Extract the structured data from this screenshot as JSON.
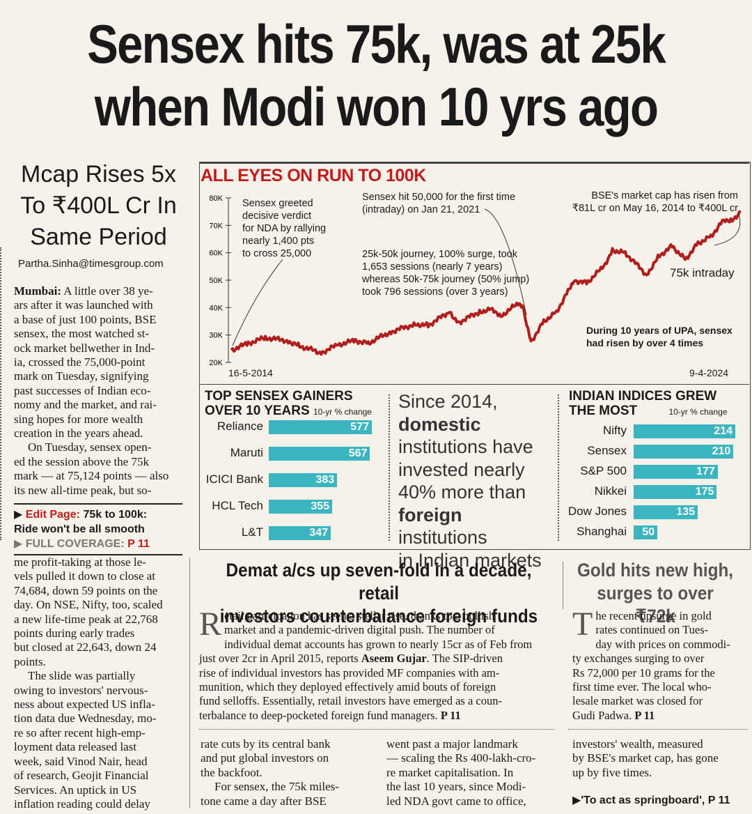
{
  "headline": {
    "line1": "Sensex hits 75k, was at 25k",
    "line2": "when Modi won 10 yrs ago"
  },
  "subhead": {
    "line1": "Mcap Rises 5x",
    "line2": "To ₹400L Cr In",
    "line3": "Same Period"
  },
  "byline": "Partha.Sinha@timesgroup.com",
  "left_column": {
    "lines": [
      "Mumbai: A little over 38 ye-",
      "ars after it was launched with",
      "a base of just 100 points, BSE",
      "sensex, the most watched st-",
      "ock market bellwether in Ind-",
      "ia, crossed the 75,000-point",
      "mark on Tuesday, signifying",
      "past successes of Indian eco-",
      "nomy and the market, and rai-",
      "sing hopes for more wealth",
      "creation in the years ahead.",
      "On Tuesday, sensex open-",
      "ed the session above the 75k",
      "mark — at 75,124 points — also",
      "its new all-time peak, but so-"
    ],
    "lines2": [
      "me profit-taking at those le-",
      "vels pulled it down to close at",
      "74,684, down 59 points on the",
      "day. On NSE, Nifty, too, scaled",
      "a new life-time peak at 22,768",
      "points during early trades",
      "but closed at 22,643, down 24",
      "points.",
      "The slide was partially",
      "owing to investors' nervous-",
      "ness about expected US infla-",
      "tion data due Wednesday, mo-",
      "re so after recent high-emp-",
      "loyment data released last",
      "week, said Vinod Nair, head",
      "of research, Geojit Financial",
      "Services. An uptick in US",
      "inflation reading could delay"
    ]
  },
  "promo": {
    "edit_label": "Edit Page:",
    "edit_text": "75k to 100k:",
    "edit_text2": "Ride won't be all smooth",
    "coverage_label": "FULL COVERAGE:",
    "coverage_page": "P 11"
  },
  "chart_data": [
    {
      "type": "line",
      "title": "ALL EYES ON RUN TO 100K",
      "x_start": "16-5-2014",
      "x_end": "9-4-2024",
      "y_ticks": [
        "20K",
        "30K",
        "40K",
        "50K",
        "60K",
        "70K",
        "80K"
      ],
      "ylim": [
        20000,
        80000
      ],
      "series": [
        {
          "name": "",
          "color": "#b01e1e",
          "x": [
            "2014-05",
            "2014-09",
            "2015-01",
            "2015-06",
            "2015-09",
            "2016-02",
            "2016-06",
            "2016-10",
            "2017-01",
            "2017-06",
            "2017-12",
            "2018-03",
            "2018-08",
            "2018-10",
            "2019-03",
            "2019-06",
            "2019-08",
            "2019-12",
            "2020-01",
            "2020-03",
            "2020-06",
            "2020-09",
            "2020-12",
            "2021-01",
            "2021-04",
            "2021-08",
            "2021-10",
            "2022-01",
            "2022-06",
            "2022-09",
            "2022-12",
            "2023-03",
            "2023-06",
            "2023-09",
            "2023-12",
            "2024-02",
            "2024-04"
          ],
          "values": [
            24500,
            27000,
            29000,
            28000,
            26000,
            23500,
            26500,
            28000,
            27000,
            31000,
            34000,
            33500,
            38500,
            34500,
            38500,
            39500,
            37000,
            41500,
            41000,
            27500,
            35000,
            38500,
            47000,
            50000,
            49000,
            55000,
            61000,
            60000,
            52000,
            59000,
            62500,
            57500,
            63500,
            66000,
            72000,
            72000,
            75000
          ]
        }
      ],
      "annotations": [
        "Sensex greeted decisive verdict for NDA by rallying nearly 1,400 pts to cross 25,000",
        "Sensex hit 50,000 for the first time (intraday) on Jan 21, 2021",
        "BSE's market cap has risen from ₹81L cr on May 16, 2014 to ₹400L cr",
        "25k-50k journey, 100% surge, took 1,653 sessions (nearly 7 years) whereas 50k-75k journey (50% jump) took 796 sessions (over 3 years)",
        "75k intraday",
        "During 10 years of UPA, sensex had risen by over 4 times"
      ]
    },
    {
      "type": "bar",
      "title": "TOP SENSEX GAINERS OVER 10 YEARS",
      "unit_note": "10-yr % change",
      "categories": [
        "Reliance",
        "Maruti",
        "ICICI Bank",
        "HCL Tech",
        "L&T"
      ],
      "values": [
        577,
        567,
        383,
        355,
        347
      ],
      "color": "#3bb5c0"
    },
    {
      "type": "bar",
      "title": "INDIAN INDICES GREW THE MOST",
      "unit_note": "10-yr % change",
      "categories": [
        "Nifty",
        "Sensex",
        "S&P 500",
        "Nikkei",
        "Dow Jones",
        "Shanghai"
      ],
      "values": [
        214,
        210,
        177,
        175,
        135,
        50
      ],
      "color": "#3bb5c0"
    }
  ],
  "chart_text": {
    "title": "ALL EYES ON RUN TO 100K",
    "ann1": [
      "Sensex greeted",
      "decisive verdict",
      "for NDA by rallying",
      "nearly 1,400 pts",
      "to cross 25,000"
    ],
    "ann2": [
      "Sensex hit 50,000 for the first time",
      "(intraday) on Jan 21, 2021"
    ],
    "ann3": [
      "BSE's market cap has risen from",
      "₹81L cr on May 16, 2014 to ₹400L cr"
    ],
    "ann4": [
      "25k-50k journey, 100% surge, took",
      "1,653 sessions (nearly 7 years)",
      "whereas 50k-75k journey (50% jump)",
      "took 796 sessions (over 3 years)"
    ],
    "ann5": "75k intraday",
    "ann6": [
      "During 10 years of UPA, sensex",
      "had risen by over 4 times"
    ],
    "x_start": "16-5-2014",
    "x_end": "9-4-2024"
  },
  "gainers": {
    "title1": "TOP SENSEX GAINERS",
    "title2": "OVER 10 YEARS",
    "note": "10-yr % change"
  },
  "indices": {
    "title1": "INDIAN INDICES GREW",
    "title2": "THE MOST",
    "note": "10-yr % change"
  },
  "quote": {
    "l1": "Since 2014,",
    "l2": "domestic",
    "l3": "institutions have",
    "l4": "invested nearly",
    "l5": "40% more than",
    "l6a": "foreign",
    "l6b": " institutions",
    "l7": "in Indian markets"
  },
  "demat": {
    "headline1": "Demat a/cs up seven-fold in a decade, retail",
    "headline2": "investors counterbalance foreign funds",
    "dropcap": "R",
    "lines": [
      "etail participation has seen a stellar rise, thanks to a bullish",
      "market and a pandemic-driven digital push. The number of",
      "individual demat accounts has grown to nearly 15cr as of Feb from",
      "just over 2cr in April 2015, reports",
      "rise of individual investors has provided MF companies with am-",
      "munition, which they deployed effectively amid bouts of foreign",
      "fund selloffs. Essentially, retail investors have emerged as a coun-",
      "terbalance to deep-pocketed foreign fund managers."
    ],
    "reporter": "Aseem Gujar",
    "after_reporter": ". The SIP-driven",
    "page": "P 11"
  },
  "gold": {
    "headline1": "Gold hits new high,",
    "headline2": "surges to over ₹72k",
    "dropcap": "T",
    "lines": [
      "he recent upsurge in gold",
      "rates continued on Tues-",
      "day with prices on commodi-",
      "ty exchanges surging to over",
      "Rs 72,000 per 10 grams for the",
      "first time ever. The local who-",
      "lesale market was closed for",
      "Gudi Padwa."
    ],
    "page": "P 11"
  },
  "bottom_col2": [
    "rate cuts by its central bank",
    "and put global investors on",
    "the backfoot.",
    "For sensex, the 75k miles-",
    "tone came a day after BSE"
  ],
  "bottom_col3": [
    "went past a major landmark",
    "— scaling the Rs 400-lakh-cro-",
    "re market capitalisation. In",
    "the last 10 years, since Modi-",
    "led NDA govt came to office,"
  ],
  "bottom_col4": [
    "investors' wealth, measured",
    "by BSE's market cap, has gone",
    "up by five times."
  ],
  "springboard": "'To act as springboard', P 11"
}
